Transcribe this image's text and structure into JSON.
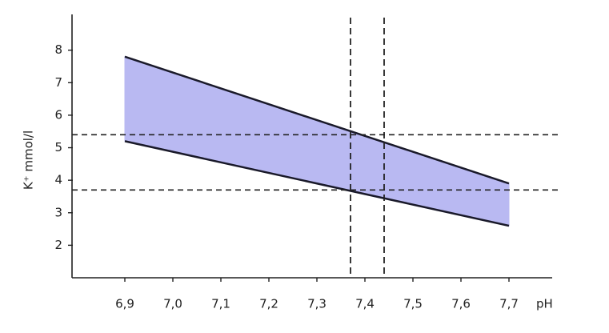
{
  "chart_data": {
    "type": "band",
    "x_label": "pH",
    "y_label": "K⁺ mmol/l",
    "x": [
      6.9,
      7.7
    ],
    "upper": [
      7.8,
      3.9
    ],
    "lower": [
      5.2,
      2.6
    ],
    "color": "#b9b9f2",
    "vlines": [
      7.37,
      7.44
    ],
    "hlines": [
      5.4,
      3.7
    ],
    "xlim": [
      6.79,
      7.79
    ],
    "ylim": [
      1.0,
      9.1
    ],
    "xticks": [
      {
        "value": 6.9,
        "label": "6,9"
      },
      {
        "value": 7.0,
        "label": "7,0"
      },
      {
        "value": 7.1,
        "label": "7,1"
      },
      {
        "value": 7.2,
        "label": "7,2"
      },
      {
        "value": 7.3,
        "label": "7,3"
      },
      {
        "value": 7.4,
        "label": "7,4"
      },
      {
        "value": 7.5,
        "label": "7,5"
      },
      {
        "value": 7.6,
        "label": "7,6"
      },
      {
        "value": 7.7,
        "label": "7,7"
      }
    ],
    "yticks": [
      2,
      3,
      4,
      5,
      6,
      7,
      8
    ]
  }
}
